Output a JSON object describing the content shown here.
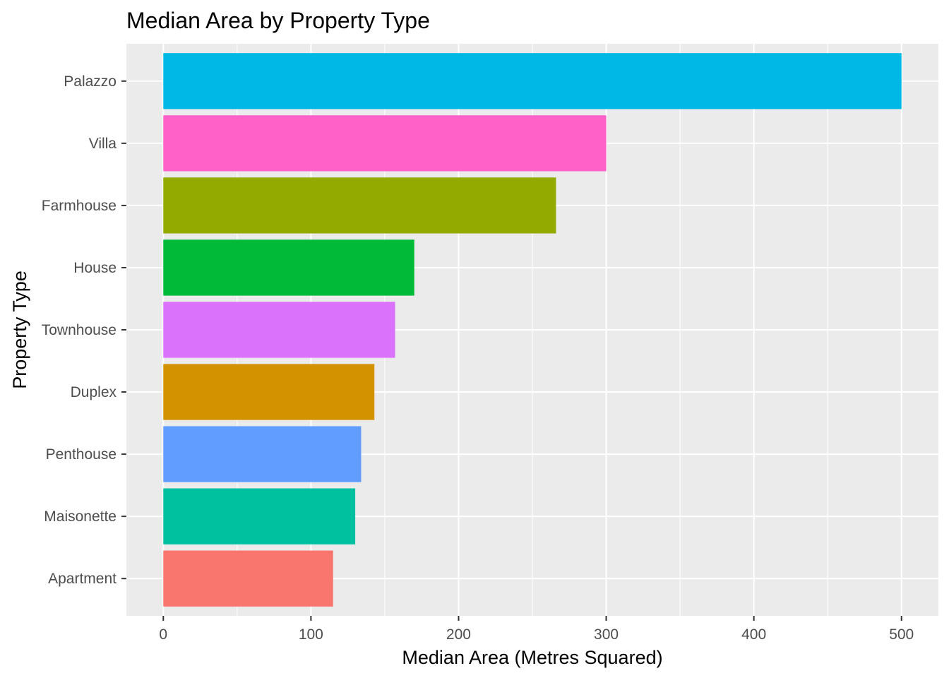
{
  "chart_data": {
    "type": "bar",
    "orientation": "horizontal",
    "title": "Median Area by Property Type",
    "xlabel": "Median Area (Metres Squared)",
    "ylabel": "Property Type",
    "xlim": [
      -25,
      525
    ],
    "x_ticks": [
      0,
      100,
      200,
      300,
      400,
      500
    ],
    "x_tick_labels": [
      "0",
      "100",
      "200",
      "300",
      "400",
      "500"
    ],
    "grid": true,
    "legend": "none",
    "categories": [
      "Palazzo",
      "Villa",
      "Farmhouse",
      "House",
      "Townhouse",
      "Duplex",
      "Penthouse",
      "Maisonette",
      "Apartment"
    ],
    "values": [
      500,
      300,
      266,
      170,
      157,
      143,
      134,
      130,
      115
    ],
    "colors": [
      "#00B8E5",
      "#FF61C9",
      "#93AA00",
      "#00BA38",
      "#DB72FB",
      "#D39200",
      "#619CFF",
      "#00C19F",
      "#F8766D"
    ]
  }
}
